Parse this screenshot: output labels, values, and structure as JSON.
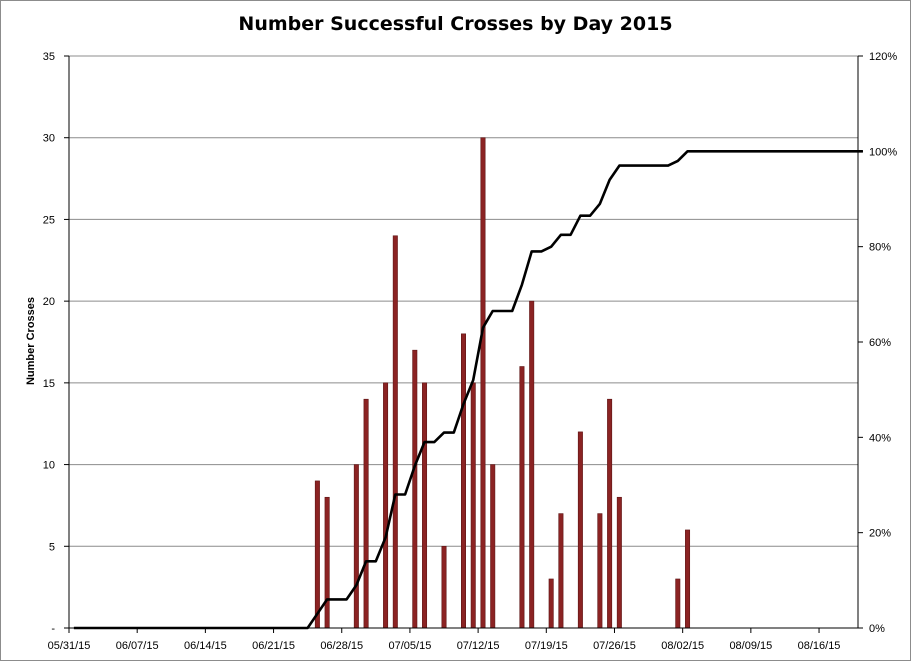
{
  "chart_data": {
    "type": "bar+line",
    "title": "Number Successful Crosses by Day 2015",
    "ylabel": "Number Crosses",
    "y2label": "",
    "xlabel": "",
    "ylim": [
      0,
      35
    ],
    "yticks": [
      0,
      5,
      10,
      15,
      20,
      25,
      30,
      35
    ],
    "yticklabels": [
      "-",
      "5",
      "10",
      "15",
      "20",
      "25",
      "30",
      "35"
    ],
    "y2lim": [
      0,
      1.2
    ],
    "y2ticklabels": [
      "0%",
      "20%",
      "40%",
      "60%",
      "80%",
      "100%",
      "120%"
    ],
    "x_start": "2015-05-31",
    "x_end": "2015-08-20",
    "xticklabels": [
      "05/31/15",
      "06/07/15",
      "06/14/15",
      "06/21/15",
      "06/28/15",
      "07/05/15",
      "07/12/15",
      "07/19/15",
      "07/26/15",
      "08/02/15",
      "08/09/15",
      "08/16/15"
    ],
    "grid": true,
    "legend": "none",
    "colors": {
      "bars": "#8b2323",
      "bar_border": "#5e1515",
      "line": "#000000",
      "grid": "#8c8c8c"
    },
    "series": [
      {
        "type": "bar",
        "axis": "left",
        "points": [
          [
            "2015-06-25",
            9
          ],
          [
            "2015-06-26",
            8
          ],
          [
            "2015-06-29",
            10
          ],
          [
            "2015-06-30",
            14
          ],
          [
            "2015-07-02",
            15
          ],
          [
            "2015-07-03",
            24
          ],
          [
            "2015-07-05",
            17
          ],
          [
            "2015-07-06",
            15
          ],
          [
            "2015-07-08",
            5
          ],
          [
            "2015-07-10",
            18
          ],
          [
            "2015-07-11",
            15
          ],
          [
            "2015-07-12",
            30
          ],
          [
            "2015-07-13",
            10
          ],
          [
            "2015-07-16",
            16
          ],
          [
            "2015-07-17",
            20
          ],
          [
            "2015-07-19",
            3
          ],
          [
            "2015-07-20",
            7
          ],
          [
            "2015-07-22",
            12
          ],
          [
            "2015-07-24",
            7
          ],
          [
            "2015-07-25",
            14
          ],
          [
            "2015-07-26",
            8
          ],
          [
            "2015-08-01",
            3
          ],
          [
            "2015-08-02",
            6
          ]
        ]
      },
      {
        "type": "line",
        "axis": "right",
        "points": [
          [
            "2015-05-31",
            0.0
          ],
          [
            "2015-06-24",
            0.0
          ],
          [
            "2015-06-25",
            0.03
          ],
          [
            "2015-06-26",
            0.06
          ],
          [
            "2015-06-28",
            0.06
          ],
          [
            "2015-06-29",
            0.09
          ],
          [
            "2015-06-30",
            0.14
          ],
          [
            "2015-07-01",
            0.14
          ],
          [
            "2015-07-02",
            0.19
          ],
          [
            "2015-07-03",
            0.28
          ],
          [
            "2015-07-04",
            0.28
          ],
          [
            "2015-07-05",
            0.34
          ],
          [
            "2015-07-06",
            0.39
          ],
          [
            "2015-07-07",
            0.39
          ],
          [
            "2015-07-08",
            0.41
          ],
          [
            "2015-07-09",
            0.41
          ],
          [
            "2015-07-10",
            0.47
          ],
          [
            "2015-07-11",
            0.52
          ],
          [
            "2015-07-12",
            0.63
          ],
          [
            "2015-07-13",
            0.665
          ],
          [
            "2015-07-15",
            0.665
          ],
          [
            "2015-07-16",
            0.72
          ],
          [
            "2015-07-17",
            0.79
          ],
          [
            "2015-07-18",
            0.79
          ],
          [
            "2015-07-19",
            0.8
          ],
          [
            "2015-07-20",
            0.825
          ],
          [
            "2015-07-21",
            0.825
          ],
          [
            "2015-07-22",
            0.865
          ],
          [
            "2015-07-23",
            0.865
          ],
          [
            "2015-07-24",
            0.89
          ],
          [
            "2015-07-25",
            0.94
          ],
          [
            "2015-07-26",
            0.97
          ],
          [
            "2015-07-31",
            0.97
          ],
          [
            "2015-08-01",
            0.98
          ],
          [
            "2015-08-02",
            1.0
          ],
          [
            "2015-08-20",
            1.0
          ]
        ]
      }
    ]
  }
}
